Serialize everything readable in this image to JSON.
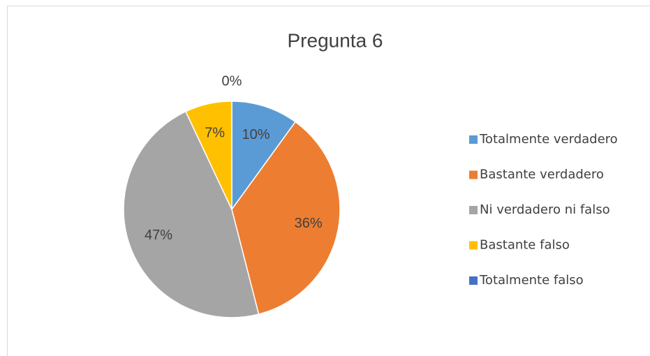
{
  "chart_data": {
    "type": "pie",
    "title": "Pregunta 6",
    "categories": [
      "Totalmente verdadero",
      "Bastante verdadero",
      "Ni verdadero ni falso",
      "Bastante falso",
      "Totalmente falso"
    ],
    "values": [
      10,
      36,
      47,
      7,
      0
    ],
    "value_labels": [
      "10%",
      "36%",
      "47%",
      "7%",
      "0%"
    ],
    "colors": [
      "#5B9BD5",
      "#ED7D31",
      "#A5A5A5",
      "#FFC000",
      "#4472C4"
    ],
    "legend": "right"
  }
}
